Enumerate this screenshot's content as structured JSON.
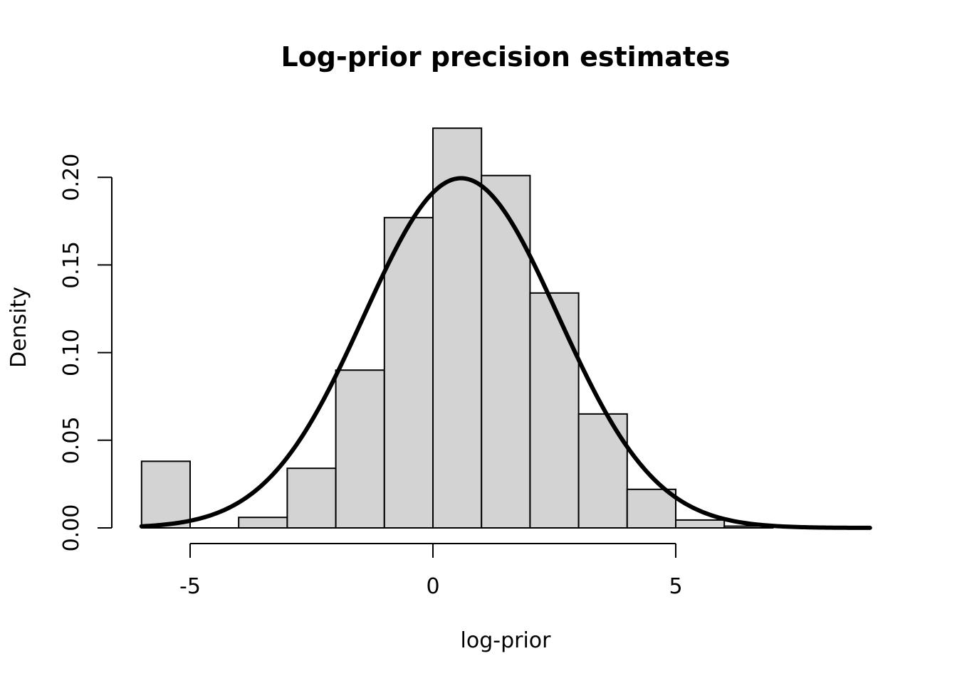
{
  "chart_data": {
    "type": "bar",
    "title": "Log-prior precision estimates",
    "xlabel": "log-prior",
    "ylabel": "Density",
    "xlim": [
      -6,
      9
    ],
    "ylim": [
      0,
      0.23
    ],
    "x_ticks": [
      -5,
      0,
      5
    ],
    "x_tick_labels": [
      "-5",
      "0",
      "5"
    ],
    "y_ticks": [
      0,
      0.05,
      0.1,
      0.15,
      0.2
    ],
    "y_tick_labels": [
      "0.00",
      "0.05",
      "0.10",
      "0.15",
      "0.20"
    ],
    "bins": [
      {
        "start": -6,
        "end": -5,
        "density": 0.038
      },
      {
        "start": -5,
        "end": -4,
        "density": 0.0
      },
      {
        "start": -4,
        "end": -3,
        "density": 0.006
      },
      {
        "start": -3,
        "end": -2,
        "density": 0.034
      },
      {
        "start": -2,
        "end": -1,
        "density": 0.09
      },
      {
        "start": -1,
        "end": 0,
        "density": 0.177
      },
      {
        "start": 0,
        "end": 1,
        "density": 0.228
      },
      {
        "start": 1,
        "end": 2,
        "density": 0.201
      },
      {
        "start": 2,
        "end": 3,
        "density": 0.134
      },
      {
        "start": 3,
        "end": 4,
        "density": 0.065
      },
      {
        "start": 4,
        "end": 5,
        "density": 0.022
      },
      {
        "start": 5,
        "end": 6,
        "density": 0.0045
      },
      {
        "start": 6,
        "end": 7,
        "density": 0.001
      }
    ],
    "density_curve": {
      "type": "normal",
      "mean": 0.58,
      "sd": 2.0,
      "x_range": [
        -6,
        9
      ]
    },
    "grid": false,
    "legend": "none"
  }
}
